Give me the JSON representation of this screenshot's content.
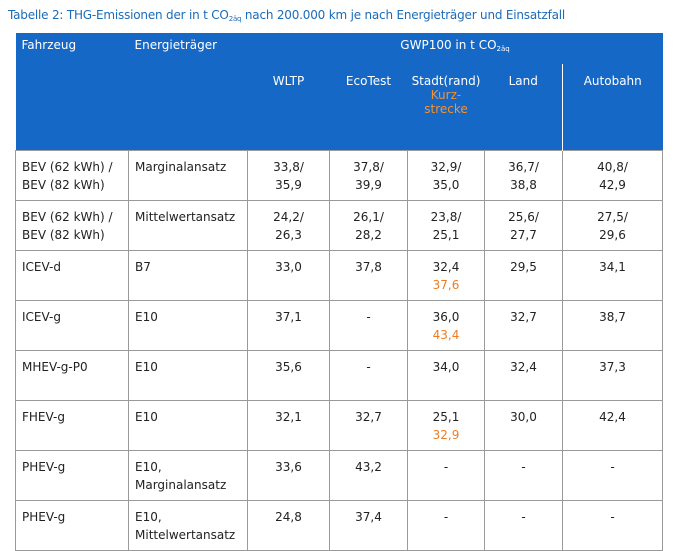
{
  "caption": {
    "prefix": "Tabelle 2: THG-Emissionen der in t CO",
    "sub": "2äq",
    "suffix": " nach 200.000 km je nach Energieträger und Einsatzfall"
  },
  "header": {
    "col_vehicle": "Fahrzeug",
    "col_energy": "Energieträger",
    "gwp_prefix": "GWP100 in t CO",
    "gwp_sub": "2äq",
    "wltp": "WLTP",
    "ecotest": "EcoTest",
    "stadt": "Stadt(rand)",
    "stadt_note_1": "Kurz-",
    "stadt_note_2": "strecke",
    "land": "Land",
    "autobahn": "Autobahn"
  },
  "rows": [
    {
      "vehicle": [
        "BEV (62 kWh) /",
        "BEV (82 kWh)"
      ],
      "energy": [
        "Marginalansatz"
      ],
      "wltp": [
        "33,8/",
        "35,9"
      ],
      "ecotest": [
        "37,8/",
        "39,9"
      ],
      "stadt": [
        "32,9/",
        "35,0"
      ],
      "stadt_short": "",
      "land": [
        "36,7/",
        "38,8"
      ],
      "autobahn": [
        "40,8/",
        "42,9"
      ]
    },
    {
      "vehicle": [
        "BEV (62 kWh) /",
        "BEV (82 kWh)"
      ],
      "energy": [
        "Mittelwertansatz"
      ],
      "wltp": [
        "24,2/",
        "26,3"
      ],
      "ecotest": [
        "26,1/",
        "28,2"
      ],
      "stadt": [
        "23,8/",
        "25,1"
      ],
      "stadt_short": "",
      "land": [
        "25,6/",
        "27,7"
      ],
      "autobahn": [
        "27,5/",
        "29,6"
      ]
    },
    {
      "vehicle": [
        "ICEV-d"
      ],
      "energy": [
        "B7"
      ],
      "wltp": [
        "33,0"
      ],
      "ecotest": [
        "37,8"
      ],
      "stadt": [
        "32,4"
      ],
      "stadt_short": "37,6",
      "land": [
        "29,5"
      ],
      "autobahn": [
        "34,1"
      ]
    },
    {
      "vehicle": [
        "ICEV-g"
      ],
      "energy": [
        "E10"
      ],
      "wltp": [
        "37,1"
      ],
      "ecotest": [
        "-"
      ],
      "stadt": [
        "36,0"
      ],
      "stadt_short": "43,4",
      "land": [
        "32,7"
      ],
      "autobahn": [
        "38,7"
      ]
    },
    {
      "vehicle": [
        "MHEV-g-P0"
      ],
      "energy": [
        "E10"
      ],
      "wltp": [
        "35,6"
      ],
      "ecotest": [
        "-"
      ],
      "stadt": [
        "34,0"
      ],
      "stadt_short": "",
      "land": [
        "32,4"
      ],
      "autobahn": [
        "37,3"
      ]
    },
    {
      "vehicle": [
        "FHEV-g"
      ],
      "energy": [
        "E10"
      ],
      "wltp": [
        "32,1"
      ],
      "ecotest": [
        "32,7"
      ],
      "stadt": [
        "25,1"
      ],
      "stadt_short": "32,9",
      "land": [
        "30,0"
      ],
      "autobahn": [
        "42,4"
      ]
    },
    {
      "vehicle": [
        "PHEV-g"
      ],
      "energy": [
        "E10,",
        "Marginalansatz"
      ],
      "wltp": [
        "33,6"
      ],
      "ecotest": [
        "43,2"
      ],
      "stadt": [
        "-"
      ],
      "stadt_short": "",
      "land": [
        "-"
      ],
      "autobahn": [
        "-"
      ]
    },
    {
      "vehicle": [
        "PHEV-g"
      ],
      "energy": [
        "E10,",
        "Mittelwertansatz"
      ],
      "wltp": [
        "24,8"
      ],
      "ecotest": [
        "37,4"
      ],
      "stadt": [
        "-"
      ],
      "stadt_short": "",
      "land": [
        "-"
      ],
      "autobahn": [
        "-"
      ]
    }
  ]
}
